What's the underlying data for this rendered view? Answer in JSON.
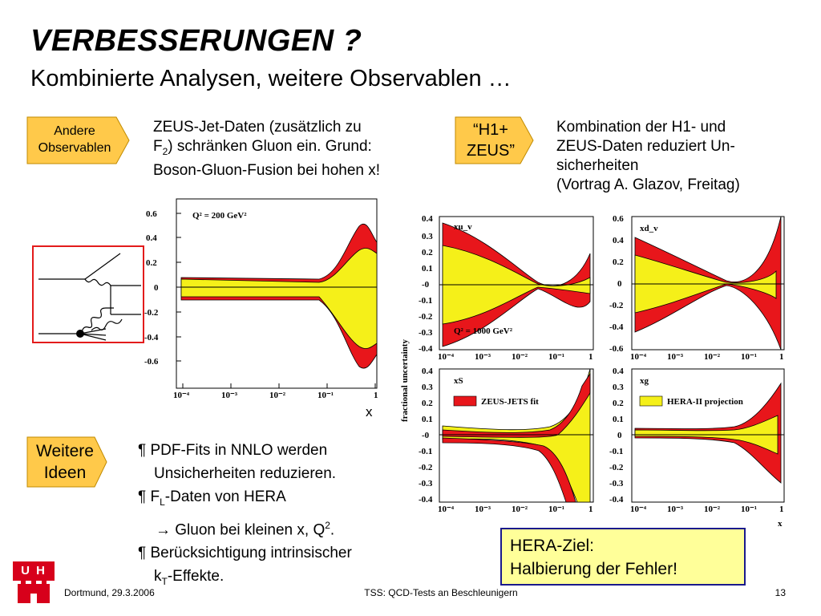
{
  "slide": {
    "title": "VERBESSERUNGEN ?",
    "subtitle": "Kombinierte Analysen, weitere Observablen …"
  },
  "tags": {
    "andere_line1": "Andere",
    "andere_line2": "Observablen",
    "h1zeus_line1": "“H1+",
    "h1zeus_line2": "ZEUS”",
    "weitere_line1": "Weitere",
    "weitere_line2": "Ideen"
  },
  "text": {
    "zeus_l1": "ZEUS-Jet-Daten (zusätzlich zu",
    "zeus_l2a": "F",
    "zeus_l2sub": "2",
    "zeus_l2b": ") schränken Gluon ein. Grund:",
    "zeus_l3": "Boson-Gluon-Fusion bei hohen x!",
    "komb_l1": "Kombination der H1- und",
    "komb_l2": "ZEUS-Daten reduziert Un-",
    "komb_l3": "sicherheiten",
    "komb_l4": "(Vortrag A. Glazov, Freitag)",
    "bullet1_l1": "¶ PDF-Fits in NNLO werden",
    "bullet1_l2": "Unsicherheiten reduzieren.",
    "bullet2_a": "¶ F",
    "bullet2_sub": "L",
    "bullet2_b": "-Daten von HERA",
    "bullet3_a": "→ Gluon bei kleinen x, Q",
    "bullet3_sup": "2",
    "bullet3_b": ".",
    "bullet4_l1": "¶ Berücksichtigung intrinsischer",
    "bullet4_a": "k",
    "bullet4_sub": "T",
    "bullet4_b": "-Effekte.",
    "hera_l1": "HERA-Ziel:",
    "hera_l2": "Halbierung der Fehler!"
  },
  "plot_left": {
    "label": "Q² = 200 GeV²",
    "xlabel": "x",
    "yticks": [
      "0.6",
      "0.4",
      "0.2",
      "0",
      "-0.2",
      "-0.4",
      "-0.6"
    ],
    "xticks": [
      "10⁻⁴",
      "10⁻³",
      "10⁻²",
      "10⁻¹",
      "1"
    ]
  },
  "plot_grid": {
    "ylabel": "fractional uncertainty",
    "xlabel": "x",
    "panel_xuv": {
      "label": "xu_v",
      "q2": "Q² = 1000 GeV²",
      "yticks": [
        "0.4",
        "0.3",
        "0.2",
        "0.1",
        "-0",
        "-0.1",
        "-0.2",
        "-0.3",
        "-0.4"
      ]
    },
    "panel_xdv": {
      "label": "xd_v",
      "yticks": [
        "0.6",
        "0.4",
        "0.2",
        "0",
        "-0.2",
        "-0.4",
        "-0.6"
      ]
    },
    "panel_xs": {
      "label": "xS",
      "legend": "ZEUS-JETS fit",
      "yticks": [
        "0.4",
        "0.3",
        "0.2",
        "0.1",
        "-0",
        "-0.1",
        "-0.2",
        "-0.3",
        "-0.4"
      ]
    },
    "panel_xg": {
      "label": "xg",
      "legend": "HERA-II projection",
      "yticks": [
        "0.4",
        "0.3",
        "0.2",
        "0.1",
        "0",
        "-0.1",
        "-0.2",
        "-0.3",
        "-0.4"
      ]
    },
    "xticks": [
      "10⁻⁴",
      "10⁻³",
      "10⁻²",
      "10⁻¹",
      "1"
    ]
  },
  "footer": {
    "logo": "U H",
    "left": "Dortmund, 29.3.2006",
    "center": "TSS: QCD-Tests an Beschleunigern",
    "page": "13"
  },
  "colors": {
    "band_red": "#e8161b",
    "band_yellow": "#f5f019",
    "tag_orange": "#ffc94a",
    "hera_box": "#ffff99",
    "logo_red": "#d7001b"
  }
}
